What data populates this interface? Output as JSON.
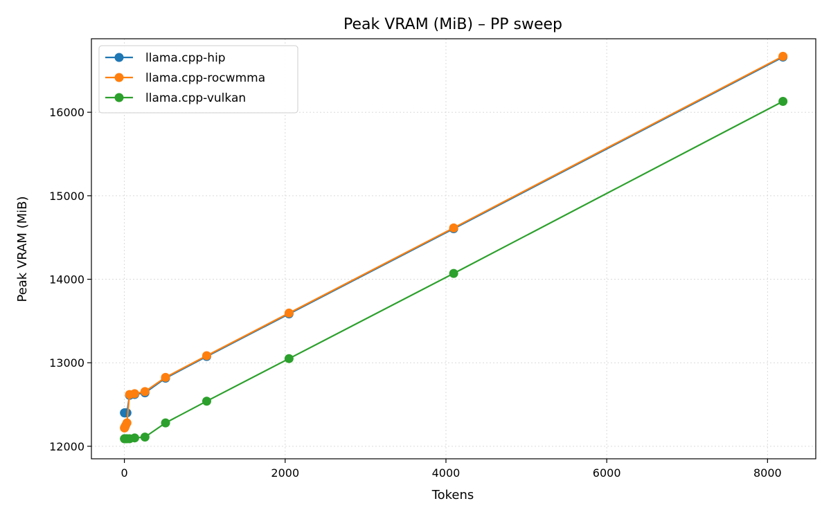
{
  "chart_data": {
    "type": "line",
    "title": "Peak VRAM (MiB) – PP sweep",
    "xlabel": "Tokens",
    "ylabel": "Peak VRAM (MiB)",
    "xlim": [
      -410,
      8600
    ],
    "ylim": [
      11850,
      16880
    ],
    "xticks": [
      0,
      2000,
      4000,
      6000,
      8000
    ],
    "yticks": [
      12000,
      13000,
      14000,
      15000,
      16000
    ],
    "xtick_labels": [
      "0",
      "2000",
      "4000",
      "6000",
      "8000"
    ],
    "ytick_labels": [
      "12000",
      "13000",
      "14000",
      "15000",
      "16000"
    ],
    "grid": true,
    "legend_position": "top-left",
    "series": [
      {
        "name": "llama.cpp-hip",
        "color": "#1f77b4",
        "x": [
          1,
          2,
          4,
          8,
          16,
          32,
          64,
          128,
          256,
          512,
          1024,
          2048,
          4096,
          8192
        ],
        "y": [
          12400,
          12400,
          12400,
          12400,
          12400,
          12400,
          12610,
          12620,
          12640,
          12815,
          13075,
          13585,
          14605,
          16660
        ]
      },
      {
        "name": "llama.cpp-rocwmma",
        "color": "#ff7f0e",
        "x": [
          1,
          2,
          4,
          8,
          16,
          32,
          64,
          128,
          256,
          512,
          1024,
          2048,
          4096,
          8192
        ],
        "y": [
          12220,
          12220,
          12225,
          12235,
          12250,
          12280,
          12620,
          12630,
          12655,
          12825,
          13085,
          13595,
          14615,
          16670
        ]
      },
      {
        "name": "llama.cpp-vulkan",
        "color": "#2ca02c",
        "x": [
          1,
          2,
          4,
          8,
          16,
          32,
          64,
          128,
          256,
          512,
          1024,
          2048,
          4096,
          8192
        ],
        "y": [
          12090,
          12090,
          12090,
          12090,
          12090,
          12090,
          12090,
          12100,
          12110,
          12280,
          12540,
          13050,
          14070,
          16130
        ]
      }
    ]
  }
}
